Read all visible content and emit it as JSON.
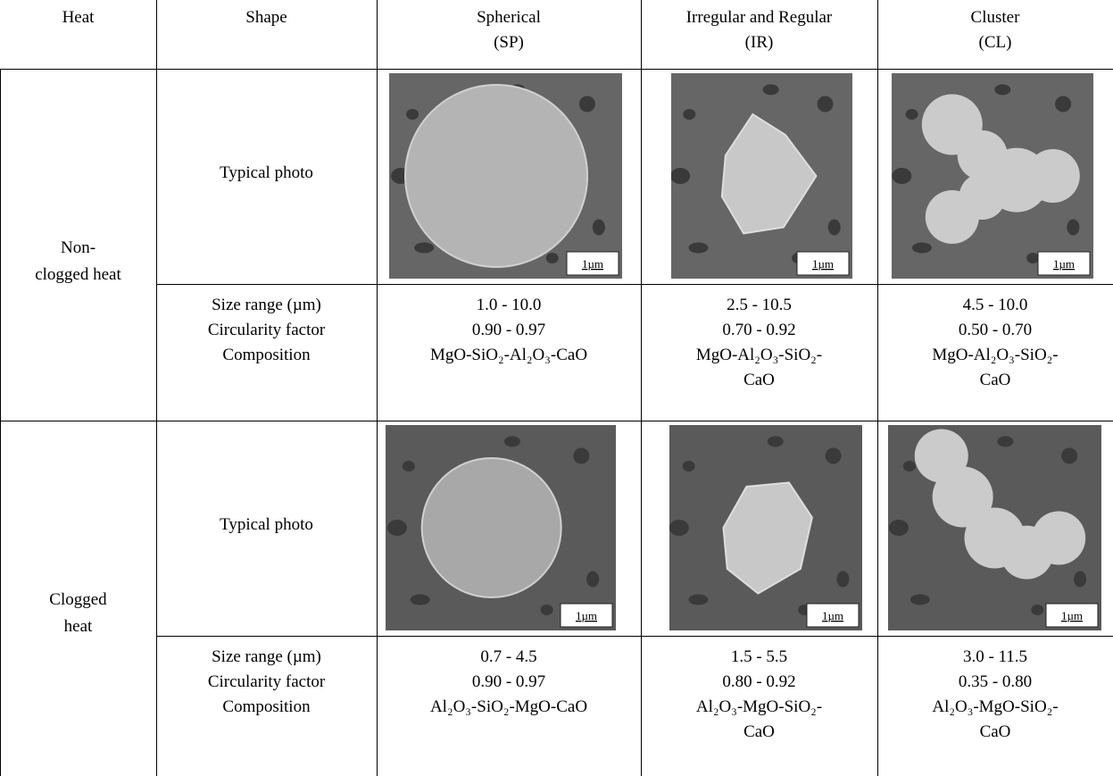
{
  "table": {
    "header": [
      [
        "Heat"
      ],
      [
        "Shape"
      ],
      [
        "Spherical",
        "(SP)"
      ],
      [
        "Irregular and Regular",
        "(IR)"
      ],
      [
        "Cluster",
        "(CL)"
      ]
    ],
    "groups": [
      {
        "heat": [
          "Non-",
          "clogged heat"
        ],
        "photo_label": "Typical photo",
        "scale_bars": [
          "1µm",
          "1µm",
          "1µm"
        ],
        "property_labels": [
          "Size range (µm)",
          "Circularity factor",
          "Composition"
        ],
        "properties": [
          {
            "size": "1.0 - 10.0",
            "circularity": "0.90 - 0.97",
            "composition": [
              "MgO-SiO₂-Al₂O₃-CaO"
            ]
          },
          {
            "size": "2.5 - 10.5",
            "circularity": "0.70 - 0.92",
            "composition": [
              "MgO-Al₂O₃-SiO₂-",
              "CaO"
            ]
          },
          {
            "size": "4.5 - 10.0",
            "circularity": "0.50 - 0.70",
            "composition": [
              "MgO-Al₂O₃-SiO₂-",
              "CaO"
            ]
          }
        ]
      },
      {
        "heat": [
          "Clogged",
          "heat"
        ],
        "photo_label": "Typical photo",
        "scale_bars": [
          "1µm",
          "1µm",
          "1µm"
        ],
        "property_labels": [
          "Size range (µm)",
          "Circularity factor",
          "Composition"
        ],
        "properties": [
          {
            "size": "0.7 - 4.5",
            "circularity": "0.90 - 0.97",
            "composition": [
              "Al₂O₃-SiO₂-MgO-CaO"
            ]
          },
          {
            "size": "1.5 - 5.5",
            "circularity": "0.80 - 0.92",
            "composition": [
              "Al₂O₃-MgO-SiO₂-",
              "CaO"
            ]
          },
          {
            "size": "3.0 - 11.5",
            "circularity": "0.35 - 0.80",
            "composition": [
              "Al₂O₃-MgO-SiO₂-",
              "CaO"
            ]
          }
        ]
      }
    ]
  }
}
